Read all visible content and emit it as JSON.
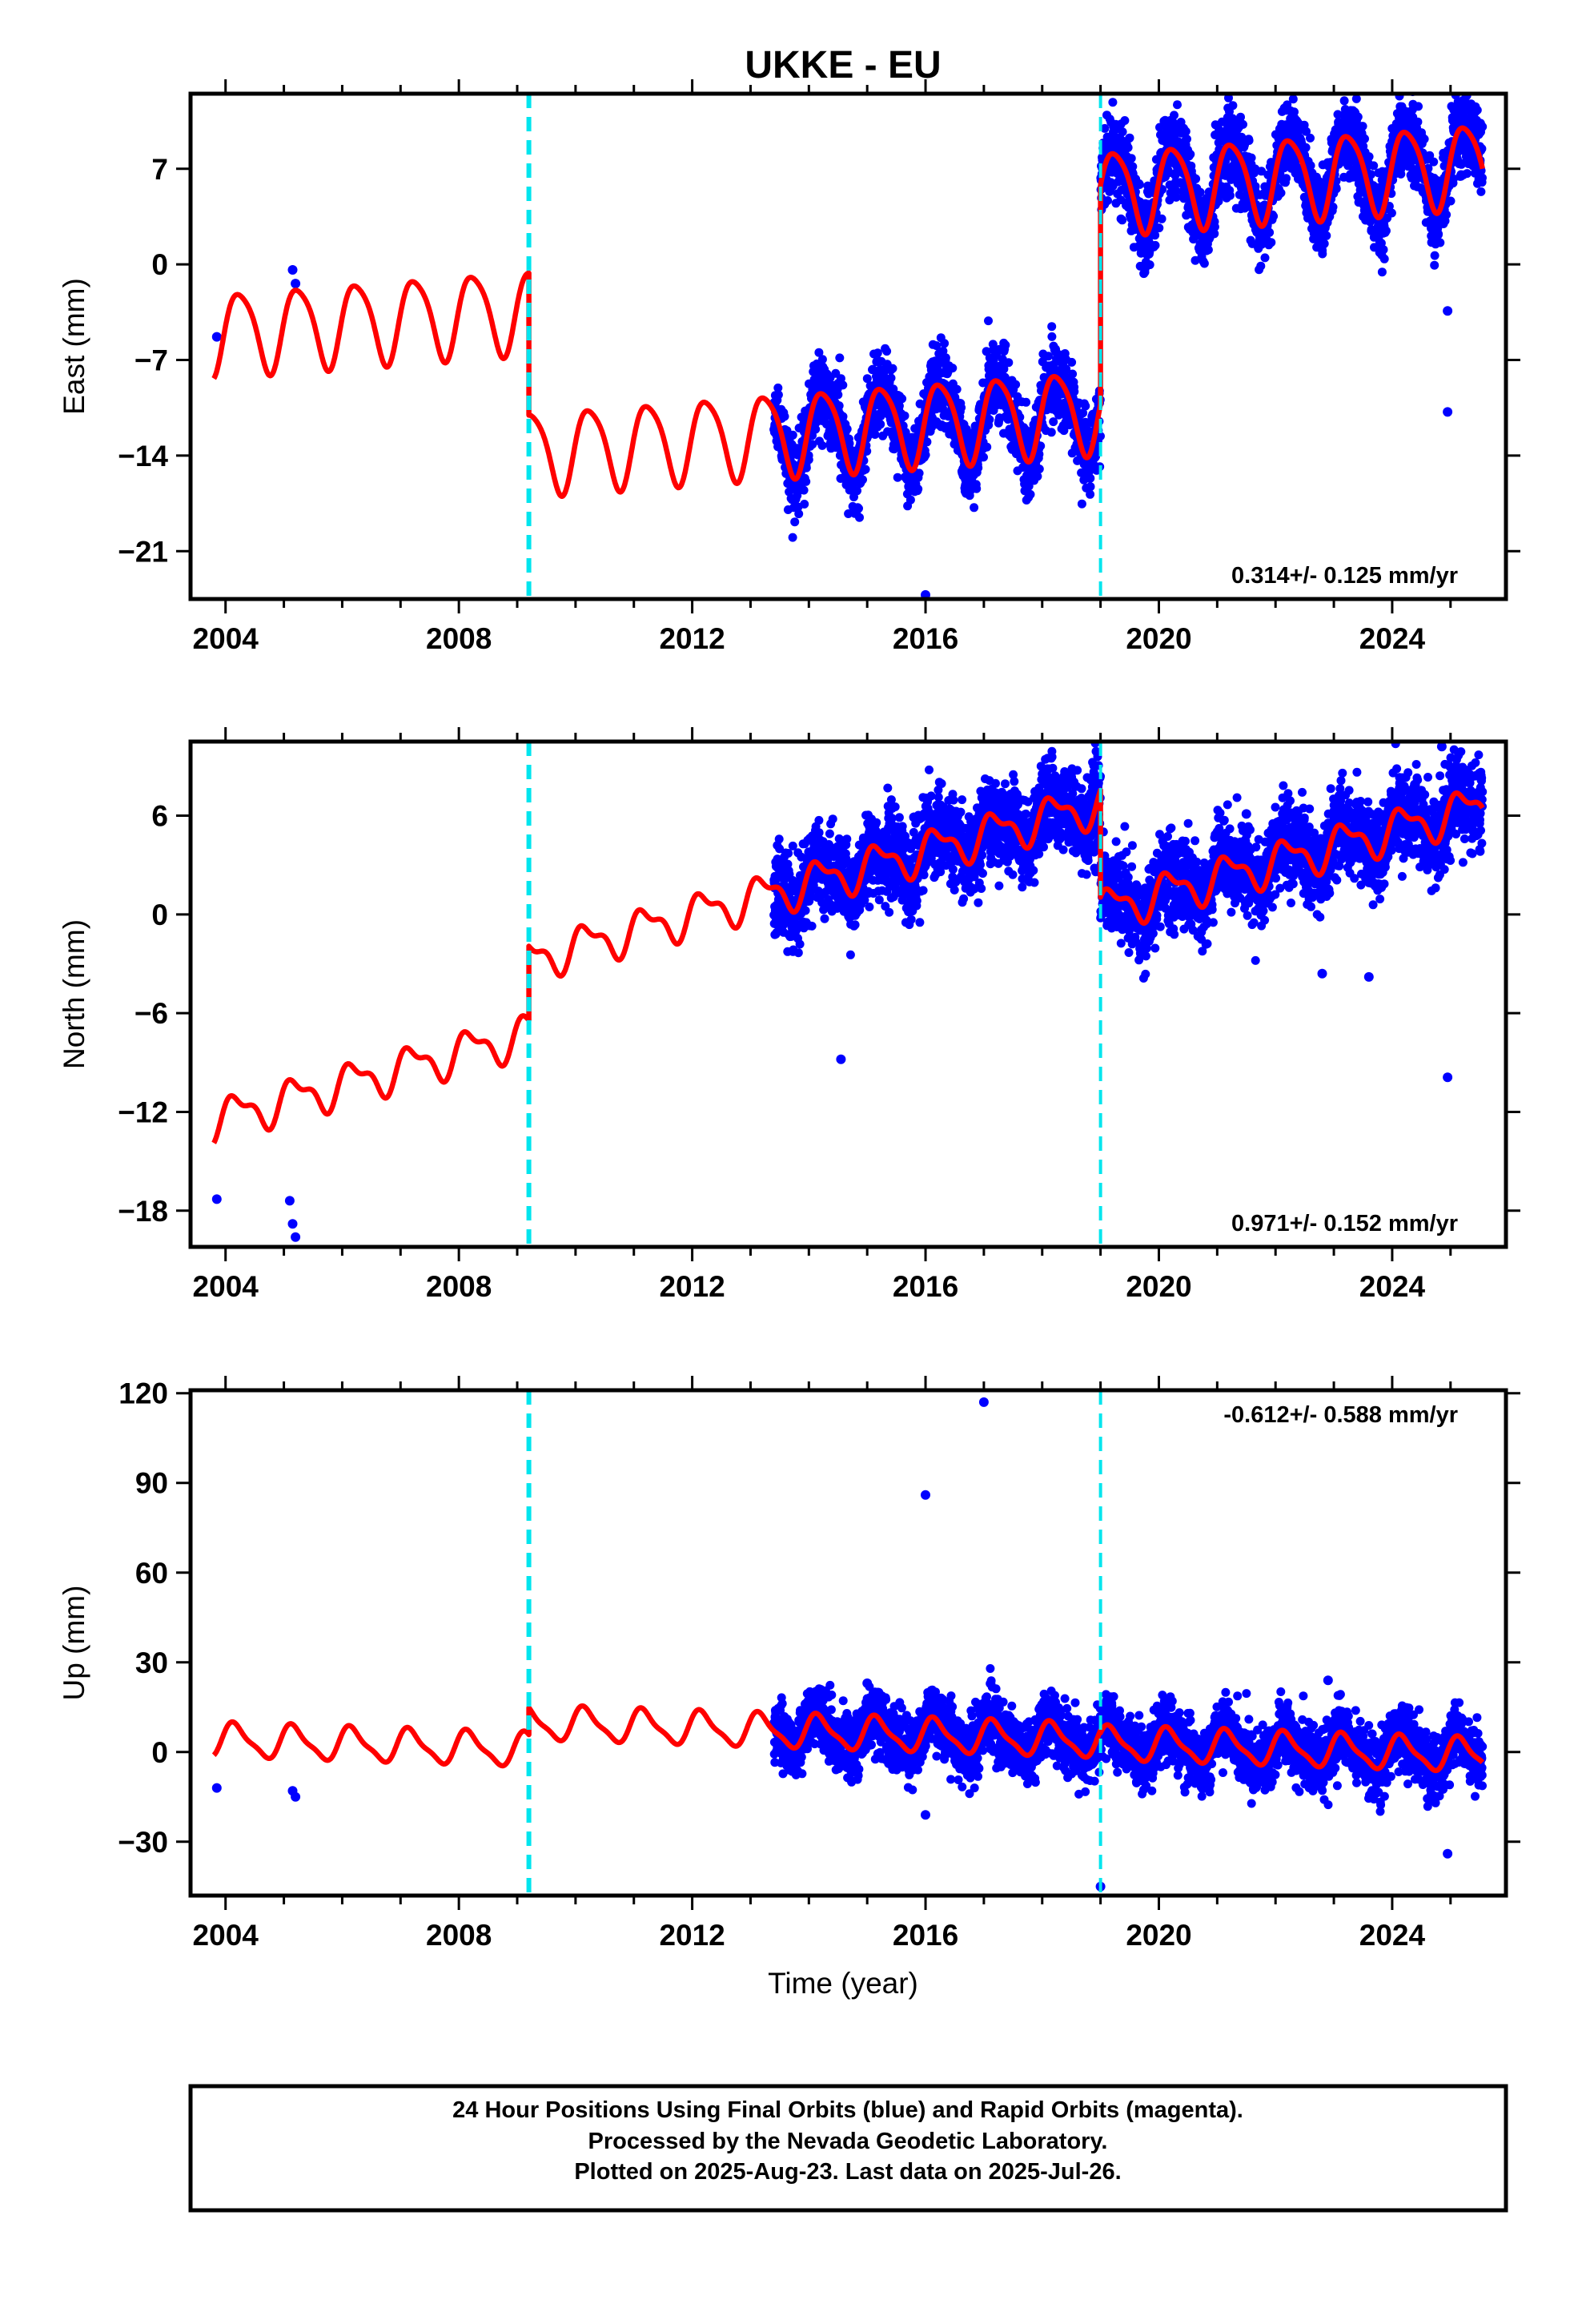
{
  "title": "UKKE - EU",
  "xlabel": "Time (year)",
  "caption": [
    "24 Hour Positions Using Final Orbits (blue) and Rapid Orbits (magenta).",
    "Processed by the Nevada Geodetic Laboratory.",
    "Plotted on 2025-Aug-23. Last data on 2025-Jul-26."
  ],
  "colors": {
    "data": "#0000ff",
    "model": "#ff0000",
    "step": "#00e5ee",
    "frame": "#000000"
  },
  "chart_data": [
    {
      "type": "scatter",
      "ylabel": "East (mm)",
      "rate": "0.314+/- 0.125 mm/yr",
      "xlim": [
        2003.4,
        2025.95
      ],
      "ylim": [
        -24.5,
        12.5
      ],
      "xticks": [
        2004,
        2008,
        2012,
        2016,
        2020,
        2024
      ],
      "yticks": [
        7,
        0,
        -7,
        -14,
        -21
      ],
      "yticklabels": [
        "7",
        "0",
        "−7",
        "−14",
        "−21"
      ],
      "steps": [
        2009.2,
        2019.0
      ],
      "model": {
        "offsets": [
          -1.8,
          -12.2,
          3.8
        ],
        "rate": 0.314,
        "ref": 2014.0,
        "annual_amp": 3.0,
        "annual_phase": 0.0,
        "semi_amp": 0.5,
        "semi_phase": 1.0
      },
      "data": {
        "start": 2013.4,
        "end": 2025.55,
        "scatter": 1.4,
        "seed": 11,
        "outliers": [
          [
            2003.85,
            -5.3
          ],
          [
            2005.15,
            -0.4
          ],
          [
            2005.2,
            -1.4
          ],
          [
            2016.0,
            -24.2
          ],
          [
            2024.95,
            -3.4
          ],
          [
            2024.95,
            -10.8
          ]
        ]
      }
    },
    {
      "type": "scatter",
      "ylabel": "North (mm)",
      "rate": "0.971+/- 0.152 mm/yr",
      "xlim": [
        2003.4,
        2025.95
      ],
      "ylim": [
        -20.2,
        10.5
      ],
      "xticks": [
        2004,
        2008,
        2012,
        2016,
        2020,
        2024
      ],
      "yticks": [
        6,
        0,
        -6,
        -12,
        -18
      ],
      "yticklabels": [
        "6",
        "0",
        "−6",
        "−12",
        "−18"
      ],
      "steps": [
        2009.2,
        2019.0
      ],
      "model": {
        "offsets": [
          -2.6,
          1.9,
          -4.6
        ],
        "rate": 0.971,
        "ref": 2014.0,
        "annual_amp": 1.1,
        "annual_phase": 0.3,
        "semi_amp": 0.5,
        "semi_phase": 1.2
      },
      "data": {
        "start": 2013.4,
        "end": 2025.55,
        "scatter": 1.3,
        "seed": 23,
        "outliers": [
          [
            2003.85,
            -17.3
          ],
          [
            2005.1,
            -17.4
          ],
          [
            2005.15,
            -18.8
          ],
          [
            2005.2,
            -19.6
          ],
          [
            2014.55,
            -8.8
          ],
          [
            2017.0,
            6.9
          ],
          [
            2018.95,
            7.1
          ],
          [
            2024.85,
            10.2
          ],
          [
            2024.95,
            -9.9
          ],
          [
            2022.8,
            -3.6
          ],
          [
            2023.6,
            -3.8
          ],
          [
            2021.5,
            6.1
          ],
          [
            2015.8,
            5.9
          ]
        ]
      }
    },
    {
      "type": "scatter",
      "ylabel": "Up (mm)",
      "rate": "-0.612+/- 0.588 mm/yr",
      "xlim": [
        2003.4,
        2025.95
      ],
      "ylim": [
        -48,
        121
      ],
      "xticks": [
        2004,
        2008,
        2012,
        2016,
        2020,
        2024
      ],
      "yticks": [
        120,
        90,
        60,
        30,
        0,
        -30
      ],
      "yticklabels": [
        "120",
        "90",
        "60",
        "30",
        "0",
        "−30"
      ],
      "steps": [
        2009.2,
        2019.0
      ],
      "model": {
        "offsets": [
          -2.2,
          6.8,
          6.0
        ],
        "rate": -0.612,
        "ref": 2014.0,
        "annual_amp": 5.3,
        "annual_phase": 0.5,
        "semi_amp": 1.5,
        "semi_phase": 0.7
      },
      "data": {
        "start": 2013.4,
        "end": 2025.55,
        "scatter": 5.0,
        "seed": 37,
        "outliers": [
          [
            2003.85,
            -12
          ],
          [
            2005.15,
            -13
          ],
          [
            2005.2,
            -15
          ],
          [
            2016.0,
            86
          ],
          [
            2017.0,
            117
          ],
          [
            2019.0,
            -45
          ],
          [
            2024.95,
            -34
          ],
          [
            2015.0,
            23
          ],
          [
            2016.0,
            -21
          ],
          [
            2022.9,
            24
          ]
        ]
      }
    }
  ]
}
